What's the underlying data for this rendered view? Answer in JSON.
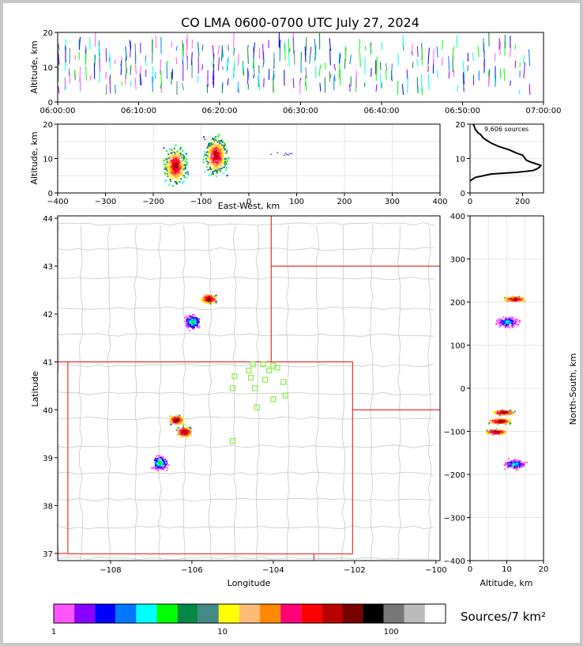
{
  "title": "CO LMA 0600-0700 UTC July 27, 2024",
  "colors": {
    "state_border": "#e02020",
    "county_border": "#c8c8c8",
    "station": "#88ee44",
    "colorbar": [
      "#ff55ff",
      "#8800ff",
      "#0000ff",
      "#0077ff",
      "#00ffff",
      "#00ff00",
      "#008844",
      "#448888",
      "#ffff00",
      "#ffbb77",
      "#ff8800",
      "#ff0077",
      "#ff0000",
      "#bb0000",
      "#770000",
      "#000000",
      "#777777",
      "#bbbbbb",
      "#ffffff"
    ]
  },
  "chart_data": [
    {
      "type": "scatter",
      "name": "time-height",
      "ylabel": "Altitude, km",
      "ylim": [
        0,
        20
      ],
      "xlim": [
        "06:00:00",
        "07:00:00"
      ],
      "x_ticks": [
        "06:00:00",
        "06:10:00",
        "06:20:00",
        "06:30:00",
        "06:40:00",
        "06:50:00",
        "07:00:00"
      ],
      "y_ticks": [
        "0",
        "10",
        "20"
      ]
    },
    {
      "type": "scatter",
      "name": "east-west-altitude",
      "xlabel": "East-West, km",
      "ylabel": "Altitude, km",
      "xlim": [
        -400,
        400
      ],
      "ylim": [
        0,
        20
      ],
      "x_ticks": [
        "−400",
        "−300",
        "−200",
        "−100",
        "0",
        "100",
        "200",
        "300",
        "400"
      ],
      "y_ticks": [
        "0",
        "10",
        "20"
      ],
      "clusters": [
        {
          "x": -155,
          "alt": 8,
          "peak": true
        },
        {
          "x": -70,
          "alt": 11,
          "peak": true
        }
      ]
    },
    {
      "type": "line",
      "name": "altitude-histogram",
      "annotation": "9,606 sources",
      "xlim": [
        0,
        280
      ],
      "ylim": [
        0,
        20
      ],
      "x_ticks": [
        "0",
        "200"
      ],
      "y_ticks": [
        "0",
        "10",
        "20"
      ],
      "points": [
        [
          0,
          3.5
        ],
        [
          20,
          4.5
        ],
        [
          80,
          5.5
        ],
        [
          180,
          6.0
        ],
        [
          240,
          6.5
        ],
        [
          255,
          7.0
        ],
        [
          265,
          7.5
        ],
        [
          270,
          8.0
        ],
        [
          250,
          8.5
        ],
        [
          230,
          9.0
        ],
        [
          215,
          9.5
        ],
        [
          210,
          10.0
        ],
        [
          205,
          10.5
        ],
        [
          200,
          11.0
        ],
        [
          180,
          11.5
        ],
        [
          165,
          12.0
        ],
        [
          150,
          12.5
        ],
        [
          130,
          13.0
        ],
        [
          110,
          13.5
        ],
        [
          95,
          14.0
        ],
        [
          80,
          14.5
        ],
        [
          70,
          15.0
        ],
        [
          60,
          15.5
        ],
        [
          50,
          16.0
        ],
        [
          45,
          16.5
        ],
        [
          40,
          17.0
        ],
        [
          30,
          17.5
        ],
        [
          25,
          18.0
        ],
        [
          20,
          18.5
        ],
        [
          18,
          19.0
        ],
        [
          15,
          19.5
        ],
        [
          12,
          20.0
        ]
      ]
    },
    {
      "type": "scatter",
      "name": "plan-view",
      "xlabel": "Longitude",
      "ylabel": "Latitude",
      "xlim": [
        -109.3,
        -99.9
      ],
      "ylim": [
        36.85,
        44.05
      ],
      "x_ticks": [
        "−108",
        "−106",
        "−104",
        "−102",
        "−100"
      ],
      "y_ticks": [
        "37",
        "38",
        "39",
        "40",
        "41",
        "42",
        "43",
        "44"
      ],
      "clusters": [
        {
          "lon": -105.6,
          "lat": 42.33,
          "peak": true
        },
        {
          "lon": -106.0,
          "lat": 41.85,
          "peak": false
        },
        {
          "lon": -106.4,
          "lat": 39.8,
          "peak": true
        },
        {
          "lon": -106.2,
          "lat": 39.55,
          "peak": true
        },
        {
          "lon": -106.8,
          "lat": 38.9,
          "peak": false
        }
      ],
      "stations": [
        [
          -104.5,
          40.95
        ],
        [
          -104.25,
          40.95
        ],
        [
          -104.0,
          40.92
        ],
        [
          -103.9,
          40.88
        ],
        [
          -104.1,
          40.82
        ],
        [
          -104.6,
          40.82
        ],
        [
          -104.95,
          40.7
        ],
        [
          -104.55,
          40.67
        ],
        [
          -104.2,
          40.63
        ],
        [
          -103.75,
          40.58
        ],
        [
          -104.45,
          40.45
        ],
        [
          -105.0,
          40.45
        ],
        [
          -103.7,
          40.3
        ],
        [
          -104.0,
          40.22
        ],
        [
          -104.4,
          40.05
        ],
        [
          -105.0,
          39.35
        ]
      ]
    },
    {
      "type": "scatter",
      "name": "north-south-altitude",
      "xlabel": "Altitude, km",
      "ylabel": "North-South, km",
      "xlim": [
        0,
        20
      ],
      "ylim": [
        -400,
        400
      ],
      "x_ticks": [
        "0",
        "10",
        "20"
      ],
      "y_ticks": [
        "−400",
        "−300",
        "−200",
        "−100",
        "0",
        "100",
        "200",
        "300",
        "400"
      ],
      "clusters": [
        {
          "alt": 12,
          "y": 208,
          "peak": true
        },
        {
          "alt": 10,
          "y": 155,
          "peak": false
        },
        {
          "alt": 9,
          "y": -55,
          "peak": true
        },
        {
          "alt": 8,
          "y": -75,
          "peak": true
        },
        {
          "alt": 7,
          "y": -100,
          "peak": true
        },
        {
          "alt": 12,
          "y": -175,
          "peak": false
        }
      ]
    }
  ],
  "colorbar": {
    "label": "Sources/7 km²",
    "ticks": [
      "1",
      "10",
      "100"
    ]
  }
}
